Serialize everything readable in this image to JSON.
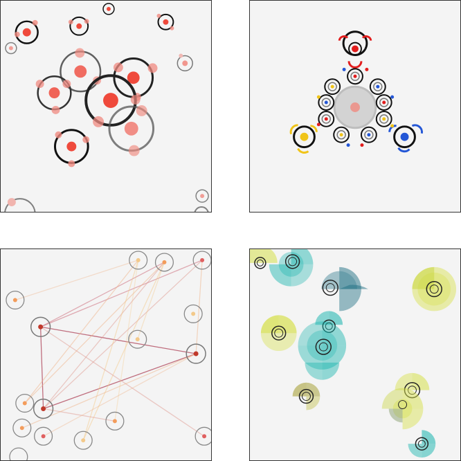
{
  "panels": [
    {
      "name": "red-particle-clusters",
      "palette": {
        "ring": "#111111",
        "node": "#ef4a3c",
        "node_soft": "#f08a80"
      }
    },
    {
      "name": "symmetric-fractal-rings",
      "palette": {
        "ring": "#111111",
        "red": "#e21d1d",
        "yellow": "#f0c419",
        "blue": "#2457d6",
        "core": "#c8c8c8"
      }
    },
    {
      "name": "connected-node-network",
      "palette": {
        "ring": "#888888",
        "node_red": "#c0392b",
        "node_orange": "#f39c5b",
        "line_dark": "#a8334a",
        "line_light": "#f0b48a"
      }
    },
    {
      "name": "radial-fan-blooms",
      "palette": {
        "teal": "#16b3ad",
        "dark_teal": "#1f6f83",
        "yellow_green": "#d6e04a",
        "olive": "#a8a23a"
      }
    }
  ]
}
